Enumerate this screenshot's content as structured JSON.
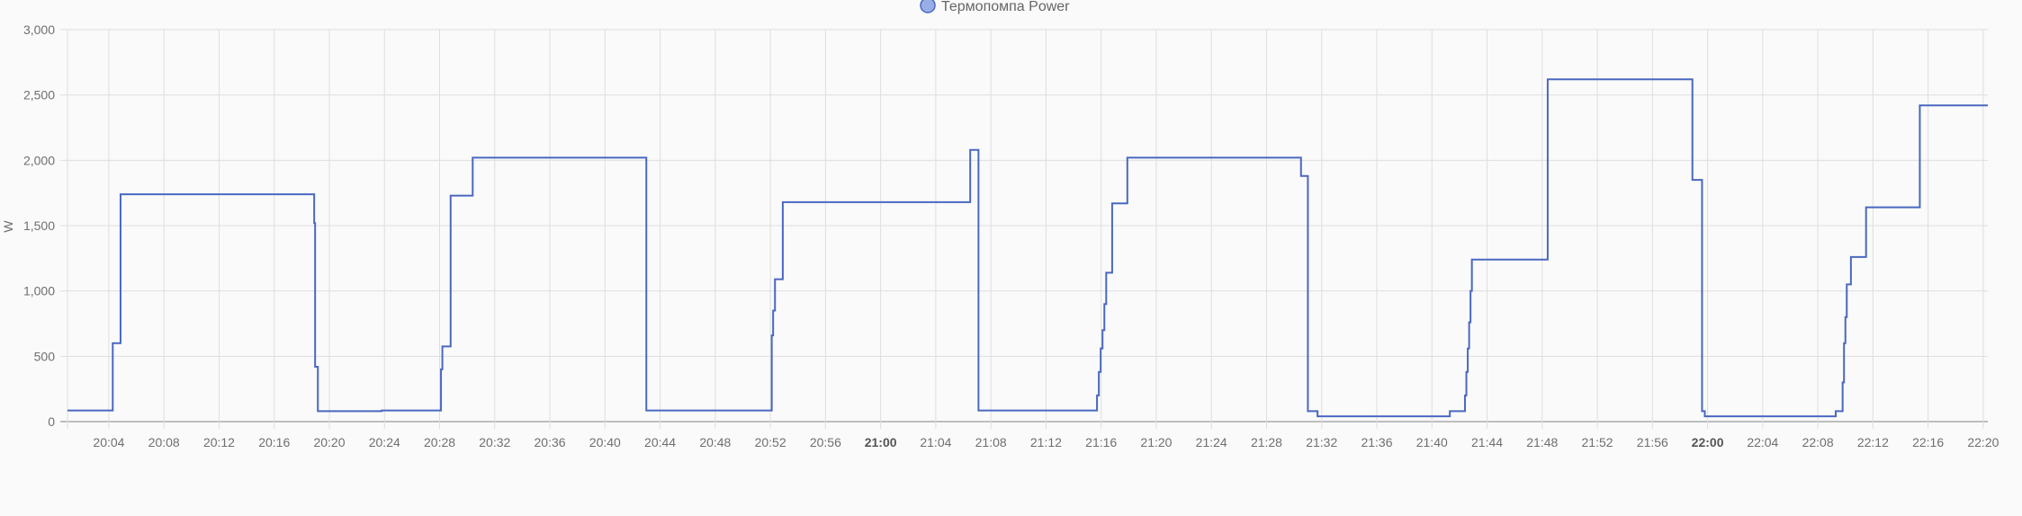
{
  "chart_data": {
    "type": "line",
    "step": true,
    "title": "",
    "xlabel": "",
    "ylabel": "W",
    "ylim": [
      0,
      3000
    ],
    "xlim": [
      "20:01:00",
      "22:20:20"
    ],
    "grid": true,
    "legend_placement": "top-center",
    "y_ticks": [
      "0",
      "500",
      "1,000",
      "1,500",
      "2,000",
      "2,500",
      "3,000"
    ],
    "x_ticks": [
      "20:04",
      "20:08",
      "20:12",
      "20:16",
      "20:20",
      "20:24",
      "20:28",
      "20:32",
      "20:36",
      "20:40",
      "20:44",
      "20:48",
      "20:52",
      "20:56",
      "21:00",
      "21:04",
      "21:08",
      "21:12",
      "21:16",
      "21:20",
      "21:24",
      "21:28",
      "21:32",
      "21:36",
      "21:40",
      "21:44",
      "21:48",
      "21:52",
      "21:56",
      "22:00",
      "22:04",
      "22:08",
      "22:12",
      "22:16",
      "22:20"
    ],
    "bold_x_ticks": [
      "21:00",
      "22:00"
    ],
    "series": [
      {
        "name": "Термопомпа Power",
        "color": "#4a68c0",
        "legend_fill": "#98aee8",
        "points": [
          [
            "20:01:00",
            85
          ],
          [
            "20:04:17",
            600
          ],
          [
            "20:04:51",
            1740
          ],
          [
            "20:18:54",
            1520
          ],
          [
            "20:18:58",
            420
          ],
          [
            "20:19:10",
            80
          ],
          [
            "20:23:48",
            85
          ],
          [
            "20:28:06",
            400
          ],
          [
            "20:28:12",
            575
          ],
          [
            "20:28:48",
            1730
          ],
          [
            "20:30:24",
            2020
          ],
          [
            "20:43:00",
            85
          ],
          [
            "20:52:06",
            660
          ],
          [
            "20:52:12",
            850
          ],
          [
            "20:52:20",
            1090
          ],
          [
            "20:52:54",
            1680
          ],
          [
            "21:06:30",
            2080
          ],
          [
            "21:07:06",
            85
          ],
          [
            "21:15:42",
            200
          ],
          [
            "21:15:50",
            380
          ],
          [
            "21:15:58",
            560
          ],
          [
            "21:16:06",
            700
          ],
          [
            "21:16:14",
            900
          ],
          [
            "21:16:22",
            1140
          ],
          [
            "21:16:48",
            1670
          ],
          [
            "21:17:54",
            2020
          ],
          [
            "21:30:30",
            1880
          ],
          [
            "21:31:00",
            80
          ],
          [
            "21:31:42",
            40
          ],
          [
            "21:41:18",
            80
          ],
          [
            "21:42:24",
            200
          ],
          [
            "21:42:30",
            380
          ],
          [
            "21:42:36",
            560
          ],
          [
            "21:42:42",
            760
          ],
          [
            "21:42:48",
            1000
          ],
          [
            "21:42:54",
            1240
          ],
          [
            "21:48:24",
            2620
          ],
          [
            "21:58:54",
            1850
          ],
          [
            "21:59:36",
            80
          ],
          [
            "21:59:48",
            40
          ],
          [
            "22:09:18",
            80
          ],
          [
            "22:09:48",
            300
          ],
          [
            "22:09:54",
            600
          ],
          [
            "22:10:00",
            800
          ],
          [
            "22:10:06",
            1050
          ],
          [
            "22:10:24",
            1260
          ],
          [
            "22:11:30",
            1640
          ],
          [
            "22:15:24",
            2420
          ],
          [
            "22:20:20",
            2420
          ]
        ]
      }
    ]
  }
}
